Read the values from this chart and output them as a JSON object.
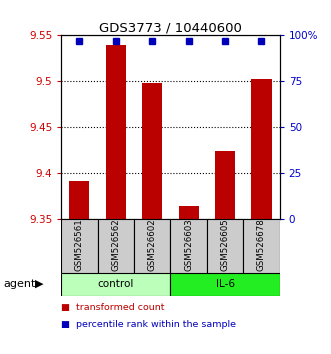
{
  "title": "GDS3773 / 10440600",
  "samples": [
    "GSM526561",
    "GSM526562",
    "GSM526602",
    "GSM526603",
    "GSM526605",
    "GSM526678"
  ],
  "red_values": [
    9.392,
    9.54,
    9.498,
    9.365,
    9.424,
    9.503
  ],
  "blue_values": [
    97,
    97,
    97,
    97,
    97,
    97
  ],
  "ylim_left": [
    9.35,
    9.55
  ],
  "ylim_right": [
    0,
    100
  ],
  "yticks_left": [
    9.35,
    9.4,
    9.45,
    9.5,
    9.55
  ],
  "ytick_labels_left": [
    "9.35",
    "9.4",
    "9.45",
    "9.5",
    "9.55"
  ],
  "yticks_right": [
    0,
    25,
    50,
    75,
    100
  ],
  "ytick_labels_right": [
    "0",
    "25",
    "50",
    "75",
    "100%"
  ],
  "groups": [
    {
      "label": "control",
      "color": "#bbffbb"
    },
    {
      "label": "IL-6",
      "color": "#22ee22"
    }
  ],
  "bar_color": "#bb0000",
  "dot_color": "#0000bb",
  "legend_items": [
    {
      "color": "#bb0000",
      "label": "transformed count"
    },
    {
      "color": "#0000bb",
      "label": "percentile rank within the sample"
    }
  ],
  "agent_label": "agent",
  "left_axis_color": "#cc0000",
  "right_axis_color": "#0000cc",
  "sample_bg_color": "#cccccc",
  "plot_bg_color": "#ffffff"
}
